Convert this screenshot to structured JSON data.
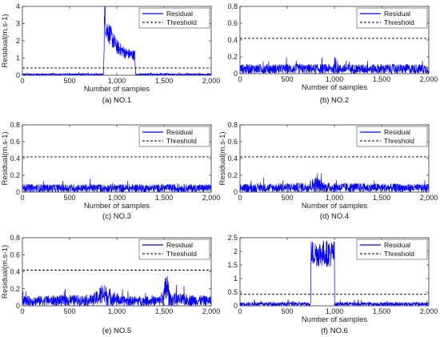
{
  "chart_data": [
    {
      "type": "line",
      "caption": "(a)  NO.1",
      "xlabel": "Number of samples",
      "ylabel": "Residual(m.s-1)",
      "xlim": [
        0,
        2000
      ],
      "ylim": [
        0,
        4
      ],
      "xticks": [
        "0",
        "500",
        "1,000",
        "1,500",
        "2,000"
      ],
      "yticks": [
        "0",
        "1",
        "2",
        "3",
        "4"
      ],
      "legend_position": "top-right",
      "series": [
        {
          "name": "Residual",
          "style": "solid",
          "color": "#0000ff",
          "profile": [
            [
              0,
              0.05
            ],
            [
              860,
              0.05
            ],
            [
              870,
              3.8
            ],
            [
              890,
              2.8
            ],
            [
              950,
              2.2
            ],
            [
              1000,
              1.7
            ],
            [
              1100,
              1.3
            ],
            [
              1190,
              1.2
            ],
            [
              1200,
              0.05
            ],
            [
              2000,
              0.05
            ]
          ]
        },
        {
          "name": "Threshold",
          "style": "dashed",
          "color": "#000000",
          "value": 0.42
        }
      ]
    },
    {
      "type": "line",
      "caption": "(b)  NO.2",
      "xlabel": "Number of samples",
      "ylabel": "",
      "xlim": [
        0,
        2000
      ],
      "ylim": [
        0,
        0.8
      ],
      "xticks": [
        "0",
        "500",
        "1,000",
        "1,500",
        "2,000"
      ],
      "yticks": [
        "0",
        "0.2",
        "0.4",
        "0.6",
        "0.8"
      ],
      "legend_position": "top-right",
      "series": [
        {
          "name": "Residual",
          "style": "solid",
          "color": "#0000ff",
          "profile": [
            [
              0,
              0.06
            ],
            [
              2000,
              0.06
            ]
          ]
        },
        {
          "name": "Threshold",
          "style": "dashed",
          "color": "#000000",
          "value": 0.42
        }
      ]
    },
    {
      "type": "line",
      "caption": "(c)  NO.3",
      "xlabel": "Number of samples",
      "ylabel": "Residual(m.s-1)",
      "xlim": [
        0,
        2000
      ],
      "ylim": [
        0,
        0.8
      ],
      "xticks": [
        "0",
        "500",
        "1,000",
        "1,500",
        "2,000"
      ],
      "yticks": [
        "0",
        "0.2",
        "0.4",
        "0.6",
        "0.8"
      ],
      "legend_position": "top-right",
      "series": [
        {
          "name": "Residual",
          "style": "solid",
          "color": "#0000ff",
          "profile": [
            [
              0,
              0.05
            ],
            [
              2000,
              0.05
            ]
          ]
        },
        {
          "name": "Threshold",
          "style": "dashed",
          "color": "#000000",
          "value": 0.42
        }
      ]
    },
    {
      "type": "line",
      "caption": "(d)  NO.4",
      "xlabel": "Number of samples",
      "ylabel": "Residual(m.s-1)",
      "xlim": [
        0,
        2000
      ],
      "ylim": [
        0,
        0.8
      ],
      "xticks": [
        "0",
        "500",
        "1,000",
        "1,500",
        "2,000"
      ],
      "yticks": [
        "0",
        "0.2",
        "0.4",
        "0.6",
        "0.8"
      ],
      "legend_position": "top-right",
      "series": [
        {
          "name": "Residual",
          "style": "solid",
          "color": "#0000ff",
          "profile": [
            [
              0,
              0.05
            ],
            [
              700,
              0.06
            ],
            [
              800,
              0.1
            ],
            [
              900,
              0.06
            ],
            [
              2000,
              0.05
            ]
          ]
        },
        {
          "name": "Threshold",
          "style": "dashed",
          "color": "#000000",
          "value": 0.42
        }
      ]
    },
    {
      "type": "line",
      "caption": "(e)  NO.5",
      "xlabel": "",
      "ylabel": "Residual(m.s-1)",
      "xlim": [
        0,
        2000
      ],
      "ylim": [
        0,
        0.8
      ],
      "xticks": [
        "0",
        "500",
        "1,000",
        "1,500",
        "2,000"
      ],
      "yticks": [
        "0",
        "0.2",
        "0.4",
        "0.6",
        "0.8"
      ],
      "legend_position": "top-right",
      "series": [
        {
          "name": "Residual",
          "style": "solid",
          "color": "#0000ff",
          "profile": [
            [
              0,
              0.06
            ],
            [
              750,
              0.07
            ],
            [
              850,
              0.14
            ],
            [
              950,
              0.1
            ],
            [
              1050,
              0.06
            ],
            [
              1450,
              0.06
            ],
            [
              1500,
              0.12
            ],
            [
              1530,
              0.25
            ],
            [
              1560,
              0.08
            ],
            [
              2000,
              0.06
            ]
          ]
        },
        {
          "name": "Threshold",
          "style": "dashed",
          "color": "#000000",
          "value": 0.42
        }
      ]
    },
    {
      "type": "line",
      "caption": "(f)  NO.6",
      "xlabel": "Number of samples",
      "ylabel": "",
      "xlim": [
        0,
        2000
      ],
      "ylim": [
        0,
        2.5
      ],
      "xticks": [
        "0",
        "500",
        "1,000",
        "1,500",
        "2,000"
      ],
      "yticks": [
        "0",
        "0.5",
        "1",
        "1.5",
        "2",
        "2.5"
      ],
      "legend_position": "top-right",
      "series": [
        {
          "name": "Residual",
          "style": "solid",
          "color": "#0000ff",
          "profile": [
            [
              0,
              0.07
            ],
            [
              749,
              0.07
            ],
            [
              750,
              1.98
            ],
            [
              1000,
              1.98
            ],
            [
              1001,
              0.07
            ],
            [
              2000,
              0.07
            ]
          ]
        },
        {
          "name": "Threshold",
          "style": "dashed",
          "color": "#000000",
          "value": 0.42
        }
      ]
    }
  ]
}
